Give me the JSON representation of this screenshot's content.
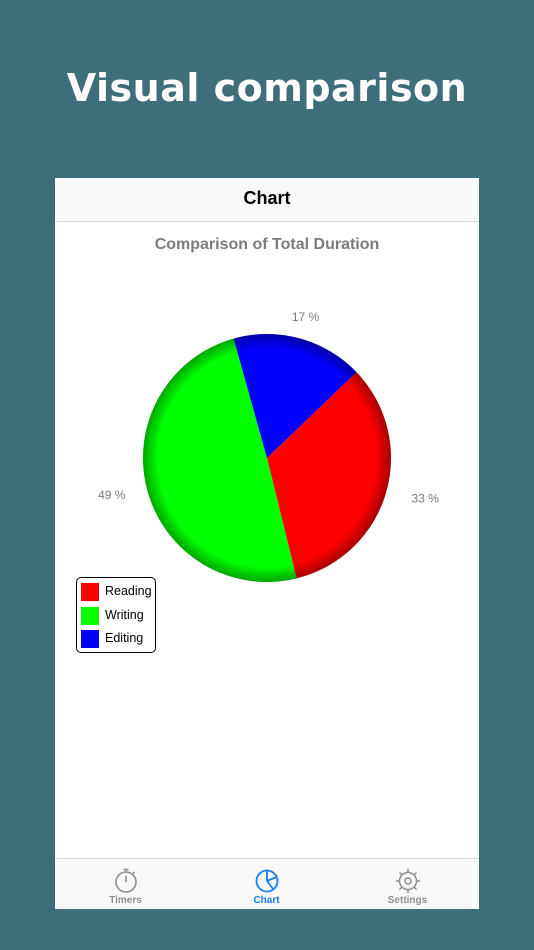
{
  "promo": {
    "title": "Visual comparison"
  },
  "nav": {
    "title": "Chart"
  },
  "chart_data": {
    "type": "pie",
    "title": "Comparison of Total Duration",
    "slices": [
      {
        "name": "Reading",
        "value": 33,
        "label": "33 %",
        "color": "#ff0000"
      },
      {
        "name": "Writing",
        "value": 49,
        "label": "49 %",
        "color": "#00ff00"
      },
      {
        "name": "Editing",
        "value": 17,
        "label": "17 %",
        "color": "#0000ff"
      }
    ],
    "legend_position": "bottom-left"
  },
  "tabs": [
    {
      "label": "Timers",
      "icon": "stopwatch-icon",
      "active": false,
      "color": "#8e8e93"
    },
    {
      "label": "Chart",
      "icon": "pie-chart-icon",
      "active": true,
      "color": "#147efb"
    },
    {
      "label": "Settings",
      "icon": "gear-icon",
      "active": false,
      "color": "#8e8e93"
    }
  ]
}
